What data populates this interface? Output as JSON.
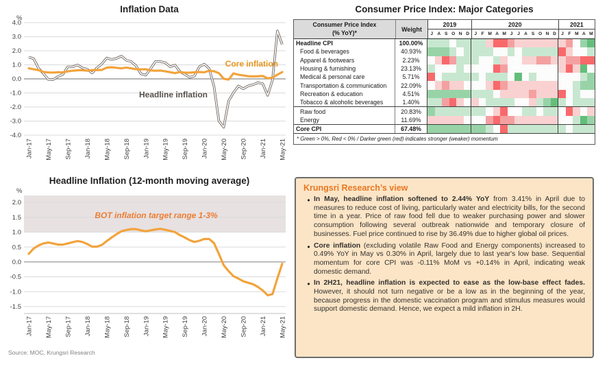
{
  "source_note": "Source: MOC, Krungsri Research",
  "chart_data": [
    {
      "type": "line",
      "title": "Inflation Data",
      "y_unit": "%",
      "ylim": [
        -4.0,
        4.0
      ],
      "y_ticks": [
        "4.0",
        "3.0",
        "2.0",
        "1.0",
        "0.0",
        "-1.0",
        "-2.0",
        "-3.0",
        "-4.0"
      ],
      "x_tick_labels": [
        "Jan-17",
        "May-17",
        "Sep-17",
        "Jan-18",
        "May-18",
        "Sep-18",
        "Jan-19",
        "May-19",
        "Sep-19",
        "Jan-20",
        "May-20",
        "Sep-20",
        "Jan-21",
        "May-21"
      ],
      "x_frequency": "monthly",
      "grid": true,
      "series": [
        {
          "name": "Headline inflation",
          "color": "#6B625C",
          "style": "double",
          "values": [
            1.55,
            1.44,
            0.76,
            0.38,
            -0.04,
            -0.05,
            0.17,
            0.32,
            0.86,
            0.86,
            0.99,
            0.78,
            0.68,
            0.42,
            0.79,
            1.07,
            1.49,
            1.38,
            1.46,
            1.62,
            1.33,
            1.23,
            0.94,
            0.36,
            0.27,
            0.73,
            1.24,
            1.23,
            1.15,
            0.87,
            0.98,
            0.52,
            0.32,
            0.11,
            0.21,
            0.87,
            1.05,
            0.74,
            -0.54,
            -2.99,
            -3.44,
            -1.57,
            -0.98,
            -0.5,
            -0.7,
            -0.5,
            -0.41,
            -0.27,
            -0.34,
            -1.17,
            -0.08,
            3.41,
            2.44
          ]
        },
        {
          "name": "Core inflation",
          "color": "#F2A33C",
          "style": "solid",
          "values": [
            0.75,
            0.69,
            0.62,
            0.5,
            0.46,
            0.45,
            0.48,
            0.46,
            0.53,
            0.58,
            0.61,
            0.62,
            0.58,
            0.63,
            0.63,
            0.64,
            0.8,
            0.83,
            0.79,
            0.75,
            0.8,
            0.75,
            0.69,
            0.68,
            0.69,
            0.6,
            0.58,
            0.59,
            0.54,
            0.48,
            0.41,
            0.49,
            0.44,
            0.44,
            0.47,
            0.49,
            0.47,
            0.58,
            0.54,
            0.41,
            0.01,
            -0.05,
            0.39,
            0.3,
            0.25,
            0.19,
            0.18,
            0.19,
            0.21,
            0.04,
            0.09,
            0.3,
            0.49
          ]
        }
      ],
      "annotations": [
        {
          "text": "Core inflation",
          "color": "#E8961E",
          "x": 398,
          "y": 76,
          "anchor": "end"
        },
        {
          "text": "Headline inflation",
          "color": "#55504B",
          "x": 245,
          "y": 121,
          "anchor": "middle"
        }
      ]
    },
    {
      "type": "heatmap",
      "title": "Consumer Price Index: Major Categories",
      "header": {
        "col1_line1": "Consumer Price Index",
        "col1_line2": "(% YoY)*",
        "col2": "Weight",
        "years": [
          {
            "label": "2019",
            "months": [
              "J",
              "A",
              "S",
              "O",
              "N",
              "D"
            ]
          },
          {
            "label": "2020",
            "months": [
              "J",
              "F",
              "M",
              "A",
              "M",
              "J",
              "J",
              "A",
              "S",
              "O",
              "N",
              "D"
            ]
          },
          {
            "label": "2021",
            "months": [
              "J",
              "F",
              "M",
              "A",
              "M"
            ]
          }
        ]
      },
      "legend_note": "momentum scale -3 (dark red) .. 0 (white) .. +3 (dark green)",
      "palette": {
        "-3": "#F8696B",
        "-2": "#F4A0A1",
        "-1": "#F8D1D0",
        "0": "#FBFCFB",
        "1": "#C8E7D0",
        "2": "#98D3A7",
        "3": "#63BE7B"
      },
      "rows": [
        {
          "label": "Headline CPI",
          "weight": "100.00%",
          "bold": true,
          "sep": false,
          "cells": [
            1,
            1,
            1,
            0,
            1,
            1,
            1,
            1,
            -1,
            -3,
            -3,
            -2,
            -1,
            -1,
            -1,
            -1,
            -1,
            -1,
            -1,
            -2,
            0,
            2,
            3
          ]
        },
        {
          "label": "Food & beverages",
          "weight": "40.93%",
          "bold": false,
          "sep": false,
          "cells": [
            2,
            2,
            2,
            1,
            0,
            1,
            1,
            1,
            1,
            0,
            0,
            1,
            0,
            1,
            1,
            1,
            1,
            1,
            -3,
            -1,
            0,
            0,
            1
          ]
        },
        {
          "label": "Apparel & footwears",
          "weight": "2.23%",
          "bold": false,
          "sep": false,
          "cells": [
            0,
            -1,
            -3,
            -2,
            1,
            1,
            1,
            0,
            0,
            1,
            -1,
            0,
            0,
            -1,
            -1,
            -2,
            -2,
            -1,
            -1,
            -2,
            -2,
            -3,
            -3
          ]
        },
        {
          "label": "Housing & furnishing",
          "weight": "23.13%",
          "bold": false,
          "sep": false,
          "cells": [
            1,
            0,
            0,
            0,
            1,
            0,
            0,
            0,
            0,
            -3,
            -2,
            0,
            0,
            0,
            0,
            0,
            0,
            0,
            -1,
            -3,
            -1,
            3,
            0
          ]
        },
        {
          "label": "Medical & personal care",
          "weight": "5.71%",
          "bold": false,
          "sep": false,
          "cells": [
            -3,
            0,
            1,
            1,
            1,
            1,
            1,
            0,
            1,
            1,
            1,
            0,
            3,
            0,
            1,
            0,
            0,
            0,
            0,
            0,
            0,
            1,
            2
          ]
        },
        {
          "label": "Transportation & communication",
          "weight": "22.09%",
          "bold": false,
          "sep": false,
          "cells": [
            0,
            -1,
            -2,
            -1,
            -1,
            0,
            0,
            0,
            -1,
            -3,
            -2,
            -1,
            -1,
            -1,
            -1,
            -1,
            -1,
            -1,
            0,
            0,
            1,
            2,
            2
          ]
        },
        {
          "label": "Recreation & education",
          "weight": "4.51%",
          "bold": false,
          "sep": false,
          "cells": [
            2,
            2,
            2,
            2,
            2,
            2,
            1,
            1,
            1,
            0,
            -1,
            -1,
            -1,
            -1,
            -2,
            -1,
            -1,
            -1,
            -3,
            0,
            1,
            0,
            0
          ]
        },
        {
          "label": "Tobacco & alcoholic beverages",
          "weight": "1.40%",
          "bold": false,
          "sep": false,
          "cells": [
            1,
            1,
            -2,
            -3,
            -1,
            0,
            -1,
            0,
            1,
            1,
            1,
            1,
            0,
            0,
            -1,
            1,
            2,
            3,
            1,
            0,
            1,
            1,
            1
          ]
        },
        {
          "label": "Raw food",
          "weight": "20.83%",
          "bold": false,
          "sep": true,
          "cells": [
            2,
            1,
            1,
            1,
            1,
            1,
            1,
            1,
            0,
            -1,
            -3,
            0,
            0,
            1,
            1,
            0,
            1,
            1,
            0,
            -3,
            -1,
            0,
            -1
          ]
        },
        {
          "label": "Energy",
          "weight": "11.69%",
          "bold": false,
          "sep": false,
          "cells": [
            -1,
            -1,
            -1,
            -1,
            -1,
            0,
            0,
            0,
            -2,
            -3,
            -2,
            -2,
            -1,
            -1,
            -1,
            -1,
            -1,
            -1,
            0,
            0,
            1,
            3,
            2
          ]
        },
        {
          "label": "Core CPI",
          "weight": "67.48%",
          "bold": true,
          "sep": true,
          "cells": [
            2,
            2,
            2,
            2,
            2,
            2,
            2,
            2,
            1,
            0,
            -3,
            1,
            1,
            1,
            1,
            1,
            1,
            1,
            1,
            0,
            1,
            1,
            1
          ]
        }
      ],
      "footnote": "* Green > 0%, Red < 0% / Darker green (red) indicates stronger (weaker) momentum"
    },
    {
      "type": "line",
      "title": "Headline Inflation (12-month moving average)",
      "y_unit": "%",
      "ylim": [
        -1.5,
        2.0
      ],
      "y_ticks": [
        "2.0",
        "1.5",
        "1.0",
        "0.5",
        "0.0",
        "-0.5",
        "-1.0",
        "-1.5"
      ],
      "x_tick_labels": [
        "Jan-17",
        "May-17",
        "Sep-17",
        "Jan-18",
        "May-18",
        "Sep-18",
        "Jan-19",
        "May-19",
        "Sep-19",
        "Jan-20",
        "May-20",
        "Sep-20",
        "Jan-21",
        "May-21"
      ],
      "x_frequency": "monthly",
      "grid": true,
      "band": {
        "from": 1.0,
        "to": "plot-top",
        "color": "#E7E1E2",
        "meaning": "BOT inflation target range 1-3%"
      },
      "series": [
        {
          "name": "Headline inflation (12-month moving average)",
          "color": "#F2A33C",
          "style": "solid",
          "values": [
            0.27,
            0.45,
            0.55,
            0.62,
            0.65,
            0.62,
            0.58,
            0.58,
            0.62,
            0.66,
            0.7,
            0.67,
            0.6,
            0.51,
            0.51,
            0.57,
            0.7,
            0.82,
            0.93,
            1.03,
            1.07,
            1.1,
            1.1,
            1.06,
            1.03,
            1.06,
            1.09,
            1.11,
            1.08,
            1.04,
            1.0,
            0.9,
            0.82,
            0.73,
            0.67,
            0.71,
            0.77,
            0.77,
            0.63,
            0.27,
            -0.11,
            -0.31,
            -0.48,
            -0.56,
            -0.65,
            -0.7,
            -0.75,
            -0.84,
            -0.96,
            -1.12,
            -1.08,
            -0.55,
            -0.06
          ]
        }
      ],
      "annotations": [
        {
          "text": "BOT inflation target range 1-3%",
          "color": "#ED7D31",
          "x": 220,
          "y": 47,
          "anchor": "middle",
          "italic": true
        }
      ]
    }
  ],
  "research_view": {
    "title": "Krungsri Research’s view",
    "title_color": "#E87722",
    "bullets": [
      {
        "bold": "In May, headline inflation softened to 2.44% YoY",
        "text": " from 3.41% in April due to measures to reduce cost of living, particularly water and electricity bills, for the second time in a year. Price of raw food fell due to weaker purchasing power and slower consumption following several outbreak nationwide and temporary closure of businesses. Fuel price continued to rise by 36.49% due to higher global oil prices."
      },
      {
        "bold": "Core inflation",
        "text": " (excluding volatile Raw Food and Energy components) increased to 0.49% YoY in May vs 0.30% in April, largely due to last year's low base. Sequential momentum for core CPI was -0.11% MoM vs +0.14% in April, indicating weak domestic demand."
      },
      {
        "bold": "In 2H21, headline inflation is expected to ease as the low-base effect fades.",
        "text": " However, it should not turn negative or be a low as in the beginning of the year, because progress in the domestic vaccination program and stimulus measures would support domestic demand. Hence, we expect a mild inflation in 2H."
      }
    ]
  }
}
